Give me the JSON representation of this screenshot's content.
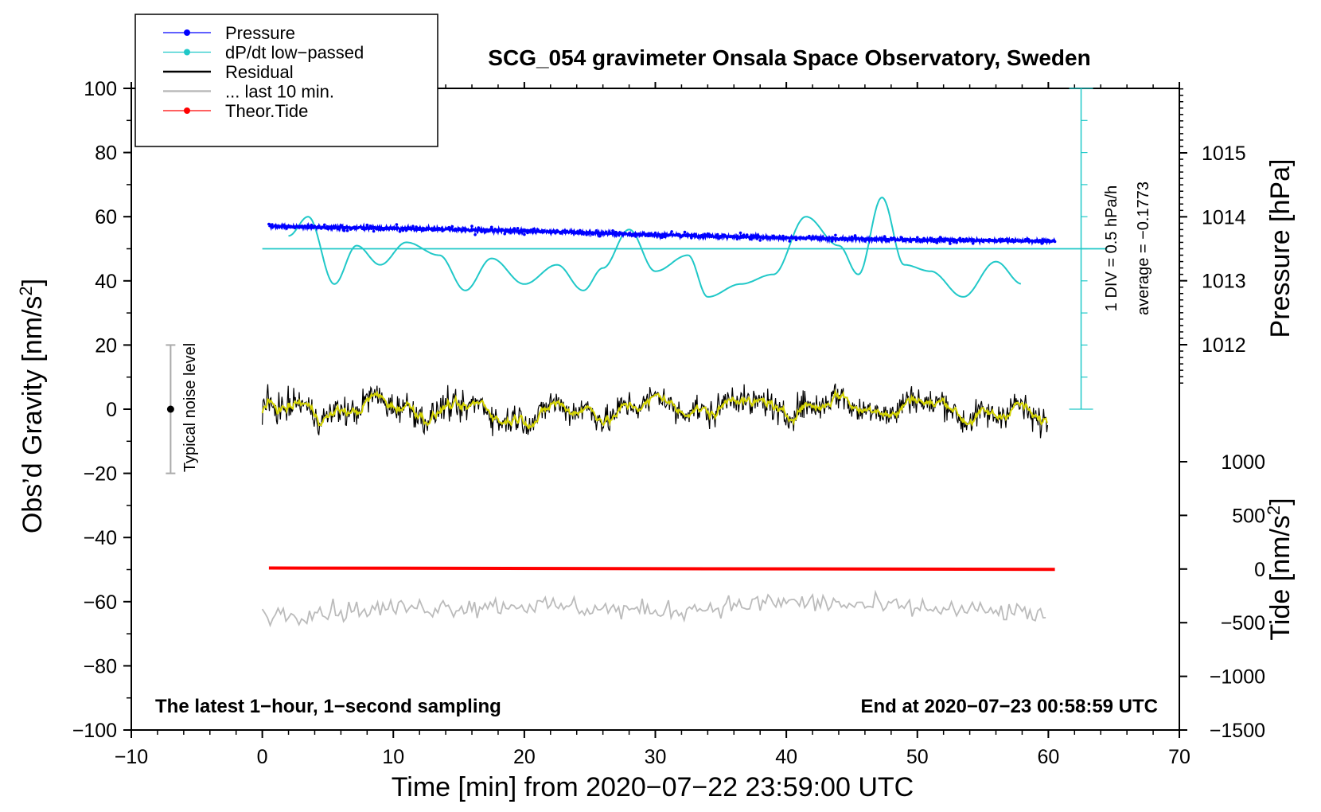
{
  "chart_data": {
    "type": "line",
    "title": "SCG_054 gravimeter Onsala Space Observatory, Sweden",
    "xlabel": "Time [min] from 2020−07−22 23:59:00 UTC",
    "ylabel": "Obs’d Gravity [nm/s",
    "ylabel_sup": "2",
    "ylabel_end": "]",
    "y2label": "Pressure [hPa]",
    "y3label": "Tide [nm/s",
    "y3label_sup": "2",
    "y3label_end": "]",
    "xlim": [
      -10,
      70
    ],
    "ylim": [
      -100,
      100
    ],
    "x_ticks": [
      "−10",
      "0",
      "10",
      "20",
      "30",
      "40",
      "50",
      "60",
      "70"
    ],
    "y_ticks": [
      "100",
      "80",
      "60",
      "40",
      "20",
      "0",
      "−20",
      "−40",
      "−60",
      "−80",
      "−100"
    ],
    "pressure_ticks": [
      "1015",
      "1014",
      "1013",
      "1012"
    ],
    "tide_ticks": [
      "1000",
      "500",
      "0",
      "−500",
      "−1000",
      "−1500"
    ],
    "legend": [
      {
        "label": "Pressure",
        "color": "#0000ff",
        "marker": true
      },
      {
        "label": "dP/dt low−passed",
        "color": "#20c8c8",
        "marker": true
      },
      {
        "label": "Residual",
        "color": "#000000",
        "marker": false
      },
      {
        "label": "... last 10 min.",
        "color": "#bbbbbb",
        "marker": false
      },
      {
        "label": "Theor.Tide",
        "color": "#ff0000",
        "marker": true
      }
    ],
    "annotations": {
      "noise": "Typical noise level",
      "div": "1 DIV = 0.5 hPa/h",
      "average": "average = −0.1773",
      "footer_left": "The latest 1−hour, 1−second sampling",
      "footer_right": "End at 2020−07−23 00:58:59 UTC"
    },
    "series": [
      {
        "name": "Pressure",
        "axis": "pressure_hPa",
        "x": [
          0.5,
          10,
          20,
          30,
          40,
          50,
          60.5
        ],
        "values": [
          1013.85,
          1013.82,
          1013.78,
          1013.72,
          1013.67,
          1013.64,
          1013.62
        ]
      },
      {
        "name": "dP/dt low-passed",
        "axis": "left_nm_s2",
        "x": [
          2,
          3.5,
          5.5,
          7.2,
          9,
          11,
          13.5,
          15.5,
          17.5,
          20,
          22.5,
          24.5,
          26,
          28,
          30,
          32.5,
          34,
          36.5,
          39,
          41.5,
          44,
          45.5,
          47.3,
          49,
          51,
          53.5,
          56,
          58
        ],
        "values": [
          54,
          60,
          39,
          51,
          45,
          52,
          48,
          37,
          47,
          39,
          45,
          37,
          44,
          56,
          43,
          48,
          35,
          39,
          42,
          60,
          51,
          42,
          66,
          45,
          43,
          35,
          46,
          39
        ]
      },
      {
        "name": "Residual",
        "axis": "left_nm_s2",
        "x": [
          0,
          10,
          20,
          30,
          40,
          50,
          60
        ],
        "values": [
          -1,
          1,
          -2,
          1,
          1,
          1,
          -3
        ]
      },
      {
        "name": "... last 10 min.",
        "axis": "left_nm_s2",
        "x": [
          0,
          10,
          20,
          30,
          40,
          50,
          60
        ],
        "values": [
          -64,
          -62,
          -61,
          -63,
          -60,
          -62,
          -64
        ]
      },
      {
        "name": "Theor.Tide",
        "axis": "tide_nm_s2",
        "x": [
          0.5,
          60.5
        ],
        "values": [
          10,
          -3
        ]
      }
    ],
    "noise_bar": {
      "x": -7,
      "center": 0,
      "low": -20,
      "high": 20
    },
    "average_line": {
      "value": 50
    },
    "div_scale": {
      "x": 62.5,
      "low": 0,
      "high": 100
    }
  }
}
